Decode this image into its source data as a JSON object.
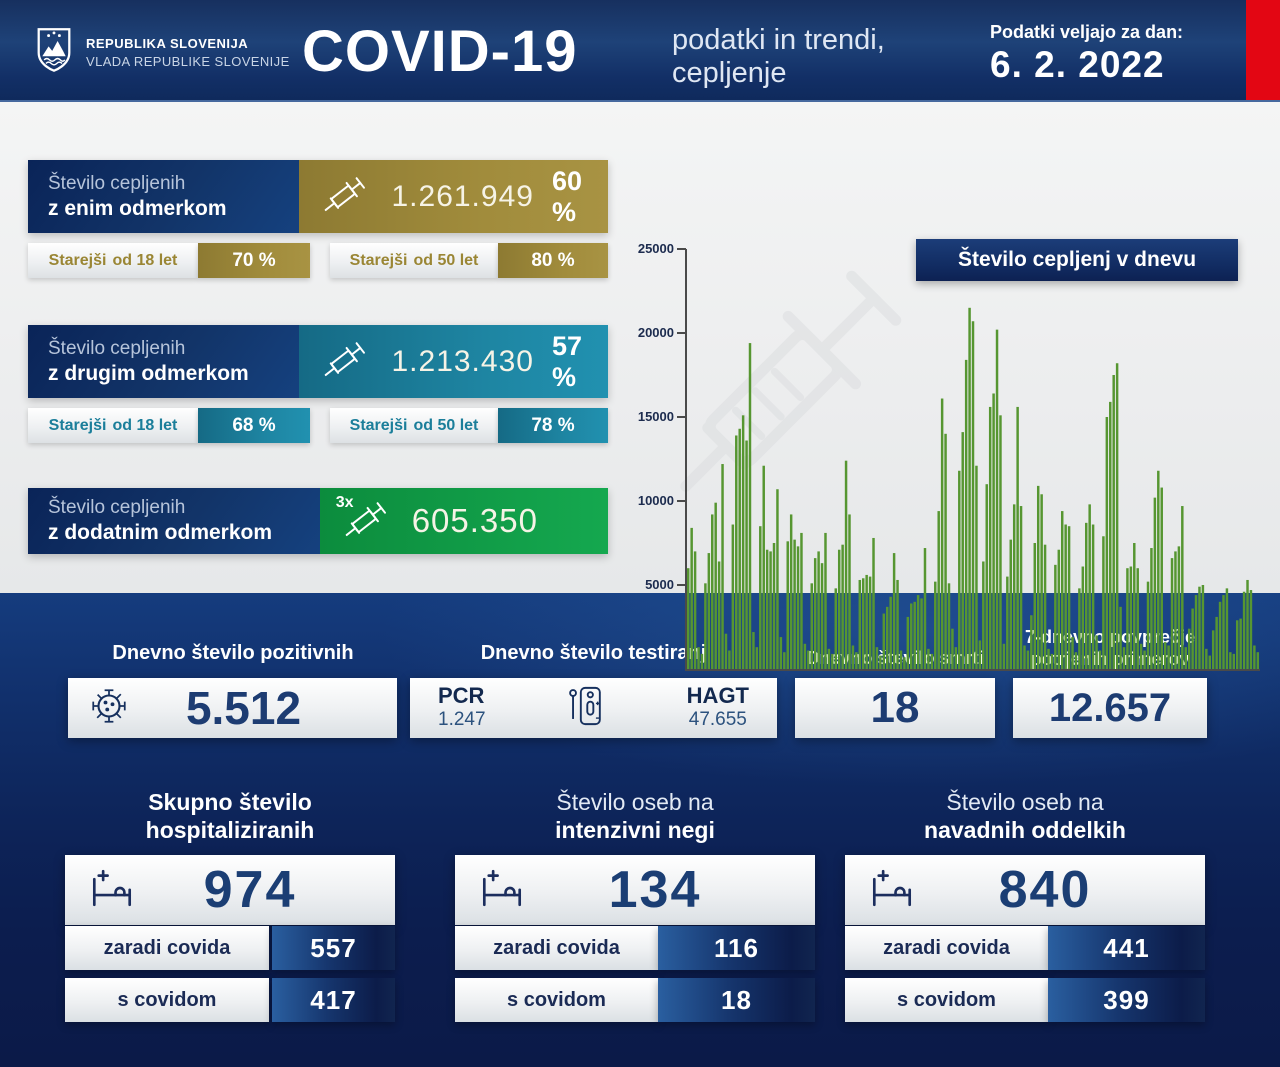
{
  "header": {
    "logo_line1": "REPUBLIKA SLOVENIJA",
    "logo_line2": "VLADA REPUBLIKE SLOVENIJE",
    "title": "COVID-19",
    "subtitle_line1": "podatki in trendi,",
    "subtitle_line2": "cepljenje",
    "date_label": "Podatki veljajo za dan:",
    "date_value": "6. 2. 2022"
  },
  "colors": {
    "gold": "#a18c3c",
    "teal": "#1e85a2",
    "green": "#12a04a",
    "navy": "#0d2459",
    "red_stripe": "#e30613",
    "bar_green": "#569631"
  },
  "icons": {
    "logo": "slovenia-coat-of-arms",
    "vaccine": "syringe-icon",
    "virus": "virus-icon",
    "test": "antigen-test-icon",
    "bed": "hospital-bed-icon",
    "watermark": "syringe-watermark"
  },
  "vaccination": {
    "blocks": [
      {
        "label_line1": "Število cepljenih",
        "label_line2": "z enim odmerkom",
        "value": "1.261.949",
        "percent": "60 %",
        "sub": [
          {
            "label_prefix": "Starejši",
            "label_bold": "od 18 let",
            "value": "70 %"
          },
          {
            "label_prefix": "Starejši",
            "label_bold": "od 50 let",
            "value": "80 %"
          }
        ]
      },
      {
        "label_line1": "Število cepljenih",
        "label_line2": "z drugim odmerkom",
        "value": "1.213.430",
        "percent": "57 %",
        "sub": [
          {
            "label_prefix": "Starejši",
            "label_bold": "od 18 let",
            "value": "68 %"
          },
          {
            "label_prefix": "Starejši",
            "label_bold": "od 50 let",
            "value": "78 %"
          }
        ]
      },
      {
        "label_line1": "Število cepljenih",
        "label_line2": "z dodatnim odmerkom",
        "value": "605.350",
        "badge": "3x"
      }
    ]
  },
  "chart_data": {
    "type": "bar",
    "title": "Število cepljenj v dnevu",
    "xlabel": "",
    "ylabel": "",
    "ylim": [
      0,
      25000
    ],
    "yticks": [
      0,
      5000,
      10000,
      15000,
      20000,
      25000
    ],
    "grid": false,
    "legend": "none",
    "bar_color": "#569631",
    "values": [
      6000,
      8400,
      7000,
      1300,
      900,
      5100,
      6900,
      9200,
      9900,
      6400,
      12200,
      2100,
      1100,
      8600,
      13900,
      14300,
      15100,
      13600,
      19400,
      2200,
      1300,
      8500,
      12100,
      7100,
      7000,
      7500,
      10700,
      1900,
      1000,
      7600,
      9200,
      7700,
      7300,
      8100,
      1500,
      1100,
      5100,
      6600,
      7000,
      6300,
      8100,
      1200,
      900,
      4800,
      7100,
      7400,
      12400,
      9200,
      1400,
      1000,
      5300,
      5400,
      5600,
      5500,
      7800,
      1300,
      800,
      3300,
      3700,
      4300,
      6900,
      5300,
      1100,
      700,
      3100,
      3900,
      4000,
      4400,
      4200,
      7200,
      1200,
      900,
      5200,
      9400,
      16100,
      14000,
      5100,
      2400,
      1300,
      11800,
      14100,
      18400,
      21500,
      20700,
      12100,
      1700,
      6400,
      11000,
      15600,
      16400,
      20200,
      15100,
      1500,
      5500,
      7700,
      9800,
      15600,
      9700,
      1400,
      1100,
      3200,
      7500,
      10900,
      10400,
      7400,
      1200,
      900,
      6200,
      7100,
      9400,
      8600,
      8500,
      1900,
      1000,
      4800,
      6100,
      8700,
      9800,
      8600,
      2000,
      1100,
      7900,
      15000,
      15900,
      17500,
      18200,
      3700,
      1300,
      6000,
      6100,
      7500,
      6000,
      1500,
      1100,
      5200,
      7200,
      10200,
      11800,
      10800,
      1600,
      1400,
      6600,
      7000,
      7300,
      9700,
      1300,
      2400,
      3600,
      4400,
      4900,
      5000,
      1200,
      800,
      2300,
      3100,
      4000,
      4400,
      4800,
      1000,
      900,
      2900,
      3000,
      4600,
      5300,
      4700,
      1400,
      1000
    ]
  },
  "daily": {
    "positives": {
      "label": "Dnevno število pozitivnih",
      "value": "5.512"
    },
    "tests": {
      "label": "Dnevno število testiranj",
      "pcr_label": "PCR",
      "pcr_value": "1.247",
      "hagt_label": "HAGT",
      "hagt_value": "47.655"
    },
    "deaths": {
      "label": "Dnevno število smrti",
      "value": "18"
    },
    "avg7": {
      "label_line1": "7-dnevno povprečje",
      "label_line2": "potrjenih primerov",
      "value": "12.657"
    }
  },
  "hospital": {
    "cards": [
      {
        "title_line1": "Skupno število",
        "title_line2": "hospitaliziranih",
        "total": "974",
        "rows": [
          {
            "label": "zaradi covida",
            "value": "557"
          },
          {
            "label": "s covidom",
            "value": "417"
          }
        ]
      },
      {
        "title_line1": "Število oseb na",
        "title_line2": "intenzivni negi",
        "total": "134",
        "rows": [
          {
            "label": "zaradi covida",
            "value": "116"
          },
          {
            "label": "s covidom",
            "value": "18"
          }
        ]
      },
      {
        "title_line1": "Število oseb na",
        "title_line2": "navadnih oddelkih",
        "total": "840",
        "rows": [
          {
            "label": "zaradi covida",
            "value": "441"
          },
          {
            "label": "s covidom",
            "value": "399"
          }
        ]
      }
    ]
  }
}
